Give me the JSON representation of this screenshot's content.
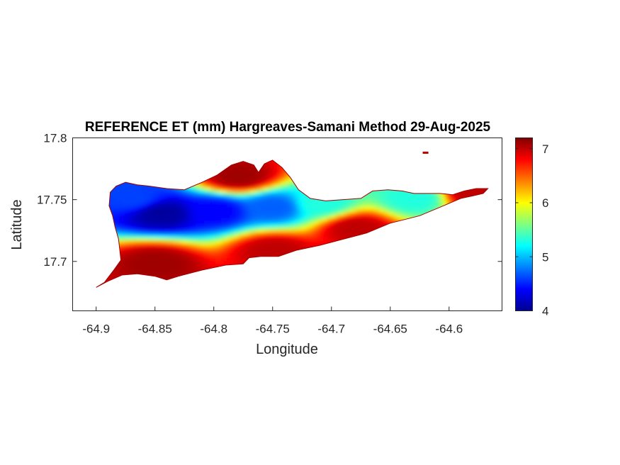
{
  "chart_data": {
    "type": "heatmap",
    "title": "REFERENCE ET (mm) Hargreaves-Samani Method  29-Aug-2025",
    "xlabel": "Longitude",
    "ylabel": "Latitude",
    "xlim": [
      -64.92,
      -64.555
    ],
    "ylim": [
      17.66,
      17.8
    ],
    "x_ticks": [
      -64.9,
      -64.85,
      -64.8,
      -64.75,
      -64.7,
      -64.65,
      -64.6
    ],
    "x_tick_labels": [
      "-64.9",
      "-64.85",
      "-64.8",
      "-64.75",
      "-64.7",
      "-64.65",
      "-64.6"
    ],
    "y_ticks": [
      17.7,
      17.75,
      17.8
    ],
    "y_tick_labels": [
      "17.7",
      "17.75",
      "17.8"
    ],
    "colorbar": {
      "colormap": "jet",
      "clim": [
        4,
        7.2
      ],
      "ticks": [
        4,
        5,
        6,
        7
      ],
      "tick_labels": [
        "4",
        "5",
        "6",
        "7"
      ]
    },
    "grid": false,
    "island_outline": [
      [
        -64.9,
        17.679
      ],
      [
        -64.893,
        17.683
      ],
      [
        -64.885,
        17.693
      ],
      [
        -64.879,
        17.701
      ],
      [
        -64.88,
        17.71
      ],
      [
        -64.881,
        17.718
      ],
      [
        -64.884,
        17.728
      ],
      [
        -64.886,
        17.737
      ],
      [
        -64.889,
        17.745
      ],
      [
        -64.888,
        17.756
      ],
      [
        -64.883,
        17.761
      ],
      [
        -64.875,
        17.764
      ],
      [
        -64.865,
        17.762
      ],
      [
        -64.855,
        17.761
      ],
      [
        -64.84,
        17.759
      ],
      [
        -64.825,
        17.758
      ],
      [
        -64.81,
        17.764
      ],
      [
        -64.797,
        17.77
      ],
      [
        -64.785,
        17.778
      ],
      [
        -64.775,
        17.781
      ],
      [
        -64.766,
        17.778
      ],
      [
        -64.762,
        17.772
      ],
      [
        -64.757,
        17.779
      ],
      [
        -64.75,
        17.782
      ],
      [
        -64.742,
        17.776
      ],
      [
        -64.735,
        17.768
      ],
      [
        -64.728,
        17.758
      ],
      [
        -64.718,
        17.751
      ],
      [
        -64.705,
        17.749
      ],
      [
        -64.69,
        17.75
      ],
      [
        -64.675,
        17.751
      ],
      [
        -64.665,
        17.757
      ],
      [
        -64.652,
        17.758
      ],
      [
        -64.64,
        17.757
      ],
      [
        -64.63,
        17.755
      ],
      [
        -64.62,
        17.755
      ],
      [
        -64.608,
        17.755
      ],
      [
        -64.597,
        17.754
      ],
      [
        -64.587,
        17.757
      ],
      [
        -64.577,
        17.759
      ],
      [
        -64.567,
        17.759
      ],
      [
        -64.571,
        17.755
      ],
      [
        -64.58,
        17.753
      ],
      [
        -64.59,
        17.751
      ],
      [
        -64.605,
        17.745
      ],
      [
        -64.625,
        17.737
      ],
      [
        -64.65,
        17.731
      ],
      [
        -64.67,
        17.723
      ],
      [
        -64.69,
        17.718
      ],
      [
        -64.71,
        17.713
      ],
      [
        -64.73,
        17.709
      ],
      [
        -64.745,
        17.704
      ],
      [
        -64.76,
        17.704
      ],
      [
        -64.77,
        17.703
      ],
      [
        -64.775,
        17.698
      ],
      [
        -64.79,
        17.697
      ],
      [
        -64.8,
        17.695
      ],
      [
        -64.81,
        17.693
      ],
      [
        -64.83,
        17.688
      ],
      [
        -64.84,
        17.685
      ],
      [
        -64.85,
        17.688
      ],
      [
        -64.865,
        17.69
      ],
      [
        -64.878,
        17.689
      ],
      [
        -64.89,
        17.684
      ]
    ],
    "islet": [
      -64.62,
      17.788
    ],
    "value_field_description_points": [
      {
        "lon": -64.845,
        "lat": 17.74,
        "et": 4.1
      },
      {
        "lon": -64.87,
        "lat": 17.752,
        "et": 4.6
      },
      {
        "lon": -64.8,
        "lat": 17.742,
        "et": 4.4
      },
      {
        "lon": -64.75,
        "lat": 17.745,
        "et": 4.7
      },
      {
        "lon": -64.71,
        "lat": 17.748,
        "et": 5.3
      },
      {
        "lon": -64.78,
        "lat": 17.77,
        "et": 7.1
      },
      {
        "lon": -64.85,
        "lat": 17.7,
        "et": 7.1
      },
      {
        "lon": -64.75,
        "lat": 17.71,
        "et": 7.0
      },
      {
        "lon": -64.68,
        "lat": 17.728,
        "et": 7.0
      },
      {
        "lon": -64.63,
        "lat": 17.752,
        "et": 5.3
      },
      {
        "lon": -64.58,
        "lat": 17.756,
        "et": 7.0
      }
    ]
  }
}
